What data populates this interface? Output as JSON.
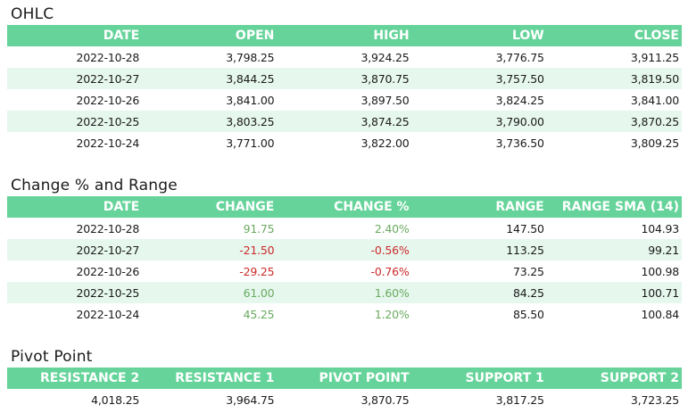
{
  "ohlc": {
    "title": "OHLC",
    "headers": [
      "DATE",
      "OPEN",
      "HIGH",
      "LOW",
      "CLOSE"
    ],
    "rows": [
      [
        "2022-10-28",
        "3,798.25",
        "3,924.25",
        "3,776.75",
        "3,911.25"
      ],
      [
        "2022-10-27",
        "3,844.25",
        "3,870.75",
        "3,757.50",
        "3,819.50"
      ],
      [
        "2022-10-26",
        "3,841.00",
        "3,897.50",
        "3,824.25",
        "3,841.00"
      ],
      [
        "2022-10-25",
        "3,803.25",
        "3,874.25",
        "3,790.00",
        "3,870.25"
      ],
      [
        "2022-10-24",
        "3,771.00",
        "3,822.00",
        "3,736.50",
        "3,809.25"
      ]
    ]
  },
  "change_range": {
    "title": "Change % and Range",
    "headers": [
      "DATE",
      "CHANGE",
      "CHANGE %",
      "RANGE",
      "RANGE SMA (14)"
    ],
    "rows": [
      [
        "2022-10-28",
        "91.75",
        "2.40%",
        "147.50",
        "104.93"
      ],
      [
        "2022-10-27",
        "-21.50",
        "-0.56%",
        "113.25",
        "99.21"
      ],
      [
        "2022-10-26",
        "-29.25",
        "-0.76%",
        "73.25",
        "100.98"
      ],
      [
        "2022-10-25",
        "61.00",
        "1.60%",
        "84.25",
        "100.71"
      ],
      [
        "2022-10-24",
        "45.25",
        "1.20%",
        "85.50",
        "100.84"
      ]
    ],
    "colors": {
      "positive": "#6aaa60",
      "negative": "#cc2a2a"
    }
  },
  "pivot": {
    "title": "Pivot Point",
    "headers": [
      "RESISTANCE 2",
      "RESISTANCE 1",
      "PIVOT POINT",
      "SUPPORT 1",
      "SUPPORT 2"
    ],
    "rows": [
      [
        "4,018.25",
        "3,964.75",
        "3,870.75",
        "3,817.25",
        "3,723.25"
      ]
    ]
  },
  "colors": {
    "header_bg": "#66d49a",
    "alt_row_bg": "#e6f7ee"
  }
}
